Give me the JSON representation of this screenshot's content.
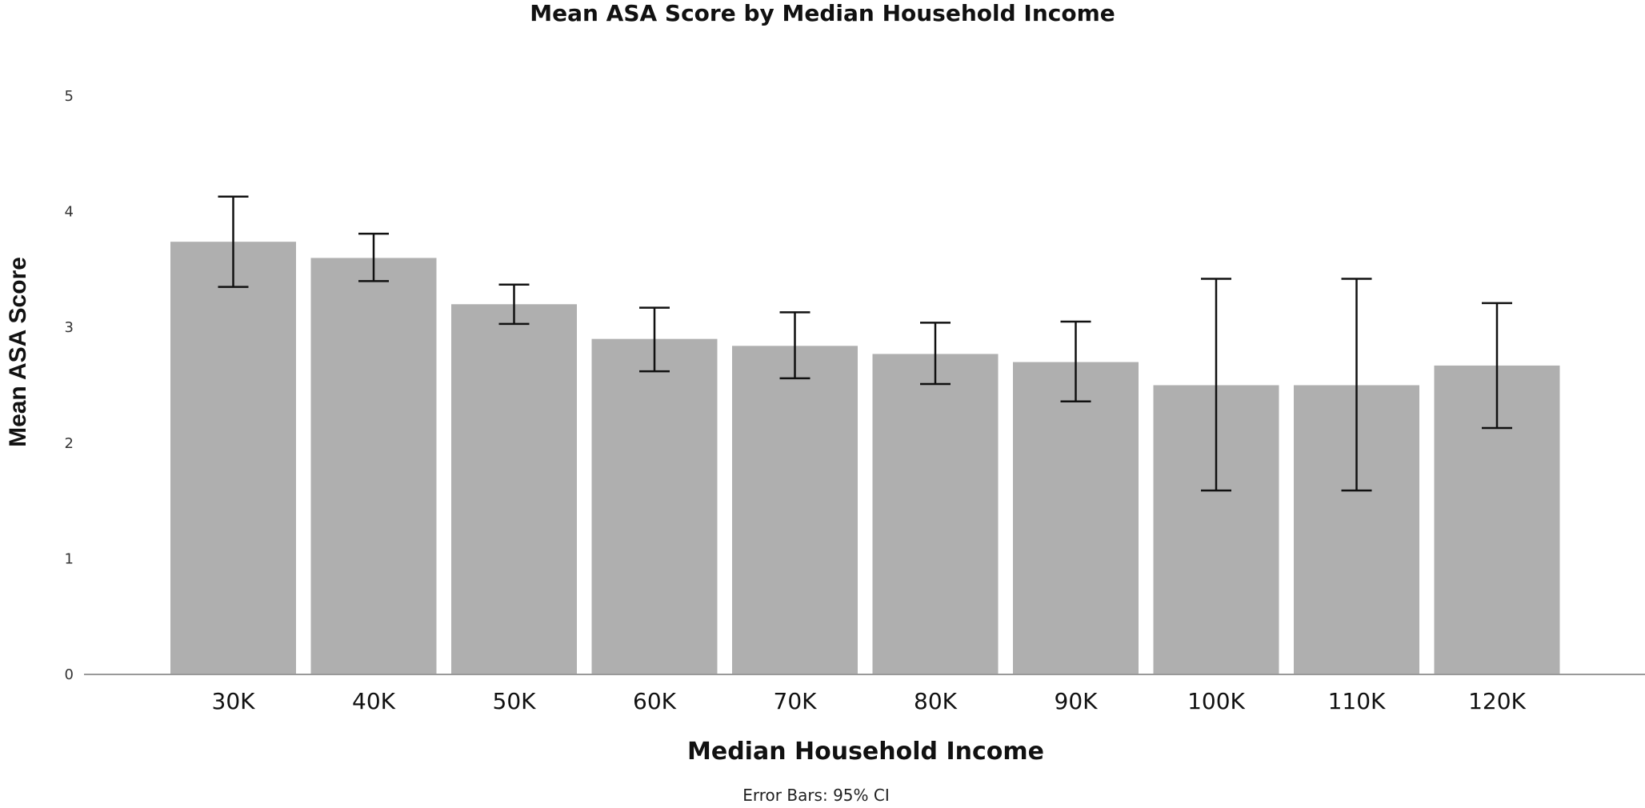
{
  "chart_data": {
    "type": "bar",
    "title": "Mean ASA Score by Median Household Income",
    "xlabel": "Median Household Income",
    "ylabel": "Mean ASA Score",
    "note": "Error Bars: 95% CI",
    "categories": [
      "30K",
      "40K",
      "50K",
      "60K",
      "70K",
      "80K",
      "90K",
      "100K",
      "110K",
      "120K"
    ],
    "values": [
      3.74,
      3.6,
      3.2,
      2.9,
      2.84,
      2.77,
      2.7,
      2.5,
      2.5,
      2.67
    ],
    "ci_lower": [
      3.35,
      3.4,
      3.03,
      2.62,
      2.56,
      2.51,
      2.36,
      1.59,
      1.59,
      2.13
    ],
    "ci_upper": [
      4.13,
      3.81,
      3.37,
      3.17,
      3.13,
      3.04,
      3.05,
      3.42,
      3.42,
      3.21
    ],
    "ylim": [
      0,
      5
    ],
    "yticks": [
      "0",
      "1",
      "2",
      "3",
      "4",
      "5"
    ],
    "grid": false,
    "legend": "none",
    "bar_color": "#afafaf",
    "error_bar_color": "#111111"
  }
}
